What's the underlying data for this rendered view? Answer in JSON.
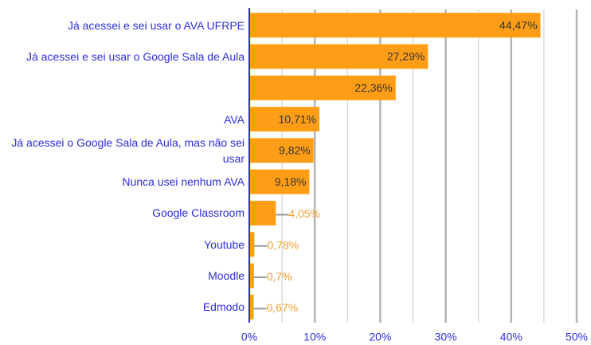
{
  "chart_data": {
    "type": "bar",
    "orientation": "horizontal",
    "categories": [
      "Já acessei e sei usar o AVA UFRPE",
      "Já acessei e sei usar o Google Sala de Aula",
      null,
      "AVA",
      "Já acessei o Google Sala de Aula, mas não sei usar",
      "Nunca usei nenhum AVA",
      "Google Classroom",
      "Youtube",
      "Moodle",
      "Edmodo"
    ],
    "values": [
      44.47,
      27.29,
      22.36,
      10.71,
      9.82,
      9.18,
      4.05,
      0.78,
      0.7,
      0.67
    ],
    "value_labels": [
      "44,47%",
      "27,29%",
      "22,36%",
      "10,71%",
      "9,82%",
      "9,18%",
      "4,05%",
      "0,78%",
      "0,7%",
      "0,67%"
    ],
    "color": "#ff9e16",
    "xlim": [
      0,
      50
    ],
    "xticks": [
      {
        "value": 0,
        "label": "0%"
      },
      {
        "value": 10,
        "label": "10%"
      },
      {
        "value": 20,
        "label": "20%"
      },
      {
        "value": 30,
        "label": "30%"
      },
      {
        "value": 40,
        "label": "40%"
      },
      {
        "value": 50,
        "label": "50%"
      }
    ],
    "xminor": [
      5,
      15,
      25,
      35,
      45
    ],
    "grid": true
  }
}
